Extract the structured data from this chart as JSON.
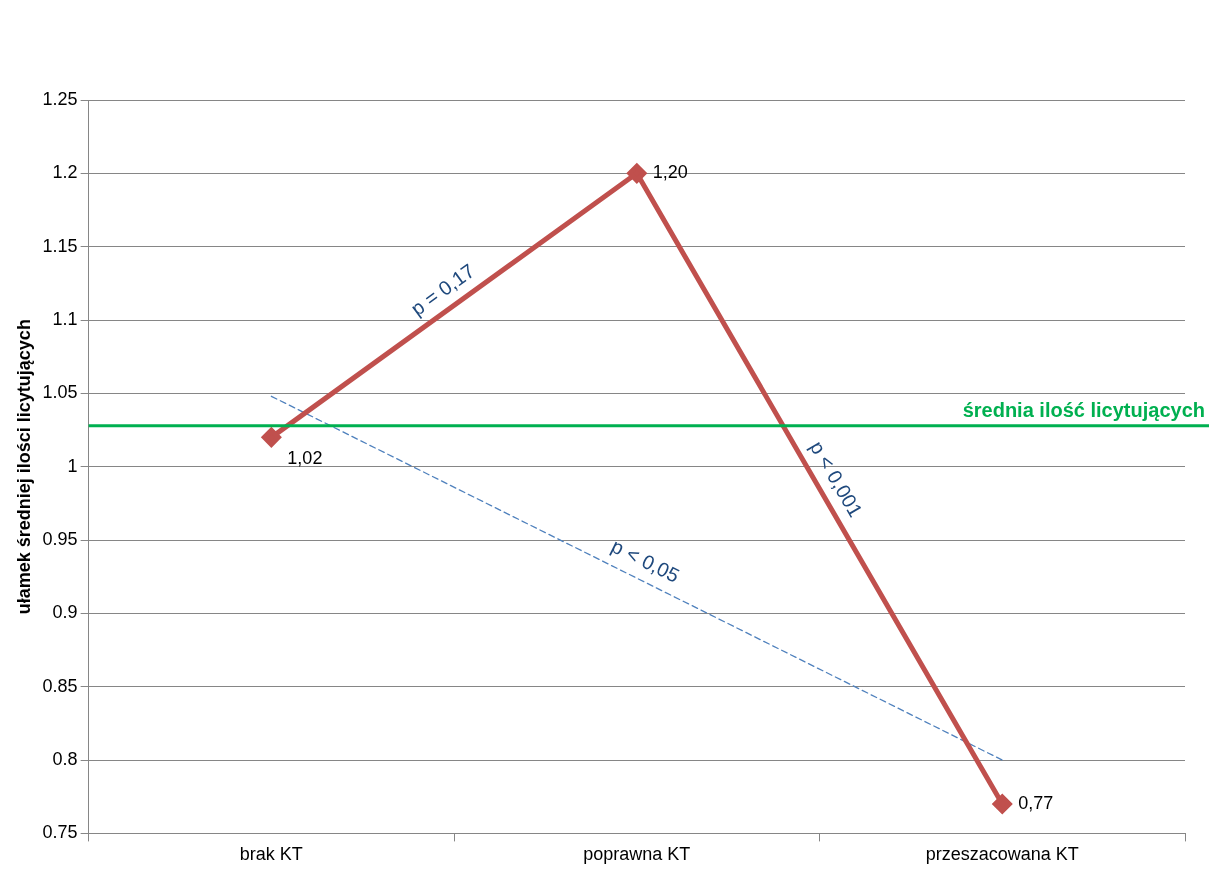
{
  "chart_data": {
    "type": "line",
    "ylabel": "ułamek średniej ilości licytujących",
    "categories": [
      "brak KT",
      "poprawna KT",
      "przeszacowana KT"
    ],
    "series": [
      {
        "color": "#c0504d",
        "values": [
          1.02,
          1.2,
          0.77
        ],
        "value_labels": [
          "1,02",
          "1,20",
          "0,77"
        ],
        "marker": "diamond",
        "line_style": "solid"
      },
      {
        "color": "#4f81bd",
        "values": [
          1.048,
          null,
          0.8
        ],
        "marker": "none",
        "line_style": "dashed"
      }
    ],
    "ylim": [
      0.75,
      1.25
    ],
    "yticks": [
      0.75,
      0.8,
      0.85,
      0.9,
      0.95,
      1,
      1.05,
      1.1,
      1.15,
      1.2,
      1.25
    ],
    "grid": "y",
    "legend": false,
    "ref_lines": [
      {
        "axis": "y",
        "value": 1.028,
        "label": "średnia ilość licytujących",
        "color": "#00b050"
      }
    ],
    "annotations": [
      "p = 0,17",
      "p < 0,001",
      "p < 0,05"
    ]
  }
}
